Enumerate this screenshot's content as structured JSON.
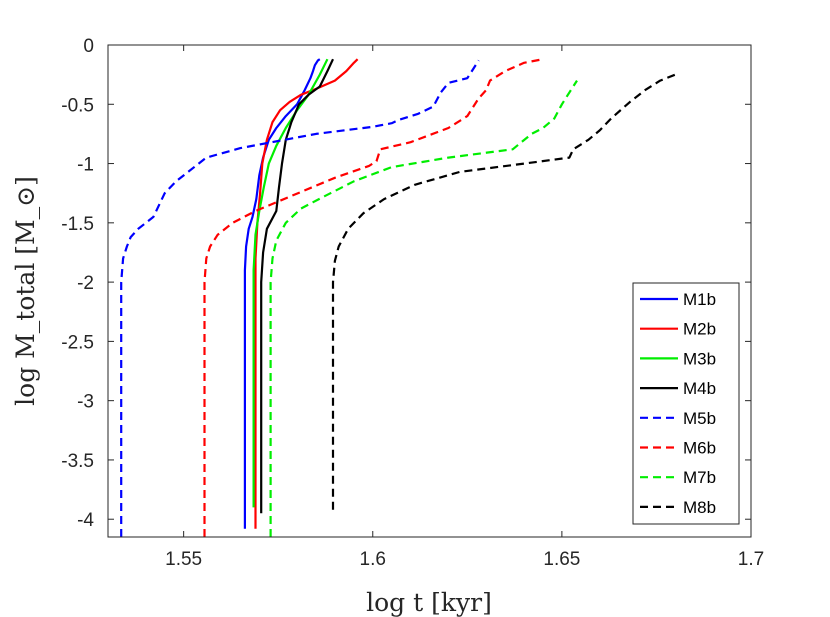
{
  "chart_data": {
    "type": "line",
    "title": "",
    "xlabel": "log t [kyr]",
    "ylabel": "log M_total [M_⊙]",
    "xlim": [
      1.53,
      1.7
    ],
    "ylim": [
      -4.15,
      0
    ],
    "xticks": [
      "1.55",
      "1.6",
      "1.65",
      "1.7"
    ],
    "yticks": [
      "0",
      "-0.5",
      "-1",
      "-1.5",
      "-2",
      "-2.5",
      "-3",
      "-3.5",
      "-4"
    ],
    "grid": false,
    "legend": "bottom-right",
    "series": [
      {
        "name": "M1b",
        "color": "#0000ff",
        "dash": "solid",
        "x": [
          1.5662,
          1.5662,
          1.5665,
          1.5672,
          1.5682,
          1.5692,
          1.57,
          1.571,
          1.5725,
          1.5745,
          1.577,
          1.58,
          1.582,
          1.5835,
          1.5842,
          1.5847,
          1.5855,
          1.586
        ],
        "y": [
          -4.08,
          -1.9,
          -1.7,
          -1.55,
          -1.45,
          -1.3,
          -1.1,
          -0.95,
          -0.8,
          -0.7,
          -0.6,
          -0.5,
          -0.38,
          -0.28,
          -0.22,
          -0.17,
          -0.13,
          -0.12
        ]
      },
      {
        "name": "M2b",
        "color": "#ff0000",
        "dash": "solid",
        "x": [
          1.569,
          1.569,
          1.5695,
          1.5702,
          1.5708,
          1.572,
          1.5735,
          1.5755,
          1.578,
          1.581,
          1.585,
          1.59,
          1.593,
          1.595,
          1.596
        ],
        "y": [
          -4.08,
          -1.8,
          -1.5,
          -1.25,
          -1.0,
          -0.8,
          -0.65,
          -0.55,
          -0.48,
          -0.42,
          -0.37,
          -0.3,
          -0.22,
          -0.15,
          -0.12
        ]
      },
      {
        "name": "M3b",
        "color": "#00ee00",
        "dash": "solid",
        "x": [
          1.5685,
          1.5685,
          1.569,
          1.57,
          1.5712,
          1.5725,
          1.5745,
          1.577,
          1.58,
          1.583,
          1.586,
          1.588
        ],
        "y": [
          -3.9,
          -1.9,
          -1.6,
          -1.4,
          -1.2,
          -1.0,
          -0.85,
          -0.7,
          -0.55,
          -0.42,
          -0.25,
          -0.12
        ]
      },
      {
        "name": "M4b",
        "color": "#000000",
        "dash": "solid",
        "x": [
          1.5705,
          1.5705,
          1.571,
          1.572,
          1.5745,
          1.5752,
          1.576,
          1.577,
          1.5785,
          1.5805,
          1.583,
          1.586,
          1.588,
          1.5895
        ],
        "y": [
          -3.95,
          -2.0,
          -1.75,
          -1.55,
          -1.4,
          -1.2,
          -1.0,
          -0.8,
          -0.65,
          -0.5,
          -0.42,
          -0.35,
          -0.22,
          -0.12
        ]
      },
      {
        "name": "M5b",
        "color": "#0000ff",
        "dash": "dashed",
        "x": [
          1.5335,
          1.5335,
          1.534,
          1.535,
          1.536,
          1.538,
          1.542,
          1.545,
          1.548,
          1.556,
          1.565,
          1.575,
          1.585,
          1.6,
          1.605,
          1.607,
          1.612,
          1.616,
          1.618,
          1.62,
          1.625,
          1.628
        ],
        "y": [
          -4.15,
          -2.0,
          -1.8,
          -1.7,
          -1.62,
          -1.55,
          -1.45,
          -1.25,
          -1.15,
          -0.95,
          -0.87,
          -0.81,
          -0.75,
          -0.69,
          -0.66,
          -0.63,
          -0.58,
          -0.52,
          -0.4,
          -0.32,
          -0.28,
          -0.13
        ]
      },
      {
        "name": "M6b",
        "color": "#ff0000",
        "dash": "dashed",
        "x": [
          1.5555,
          1.5555,
          1.556,
          1.557,
          1.559,
          1.563,
          1.569,
          1.578,
          1.59,
          1.599,
          1.601,
          1.602,
          1.61,
          1.62,
          1.625,
          1.628,
          1.63,
          1.631,
          1.635,
          1.64,
          1.645
        ],
        "y": [
          -4.15,
          -2.0,
          -1.8,
          -1.7,
          -1.6,
          -1.5,
          -1.4,
          -1.28,
          -1.12,
          -1.02,
          -0.98,
          -0.88,
          -0.82,
          -0.7,
          -0.6,
          -0.45,
          -0.38,
          -0.3,
          -0.22,
          -0.15,
          -0.12
        ]
      },
      {
        "name": "M7b",
        "color": "#00ee00",
        "dash": "dashed",
        "x": [
          1.573,
          1.573,
          1.5735,
          1.5745,
          1.577,
          1.581,
          1.587,
          1.595,
          1.605,
          1.62,
          1.637,
          1.642,
          1.645,
          1.648,
          1.65,
          1.652,
          1.654
        ],
        "y": [
          -4.15,
          -2.0,
          -1.8,
          -1.65,
          -1.5,
          -1.38,
          -1.28,
          -1.15,
          -1.03,
          -0.95,
          -0.88,
          -0.75,
          -0.7,
          -0.62,
          -0.5,
          -0.4,
          -0.3
        ]
      },
      {
        "name": "M8b",
        "color": "#000000",
        "dash": "dashed",
        "x": [
          1.5895,
          1.5895,
          1.59,
          1.591,
          1.5935,
          1.5975,
          1.603,
          1.611,
          1.623,
          1.64,
          1.652,
          1.653,
          1.657,
          1.66,
          1.663,
          1.668,
          1.672,
          1.676,
          1.68
        ],
        "y": [
          -3.92,
          -2.0,
          -1.82,
          -1.7,
          -1.55,
          -1.42,
          -1.3,
          -1.18,
          -1.07,
          -1.0,
          -0.95,
          -0.88,
          -0.8,
          -0.72,
          -0.62,
          -0.48,
          -0.38,
          -0.3,
          -0.25
        ]
      }
    ]
  }
}
